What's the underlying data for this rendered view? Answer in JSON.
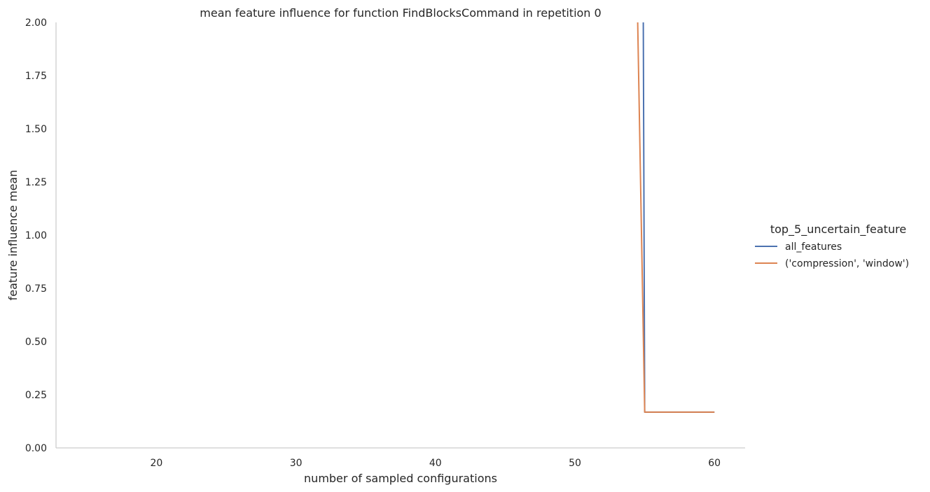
{
  "chart_data": {
    "type": "line",
    "title": "mean feature influence for function FindBlocksCommand in repetition 0",
    "xlabel": "number of sampled configurations",
    "ylabel": "feature influence mean",
    "xlim": [
      12.8,
      62.2
    ],
    "ylim": [
      0,
      2.0
    ],
    "xticks": [
      20,
      30,
      40,
      50,
      60
    ],
    "xtick_labels": [
      "20",
      "30",
      "40",
      "50",
      "60"
    ],
    "yticks": [
      0,
      0.25,
      0.5,
      0.75,
      1.0,
      1.25,
      1.5,
      1.75,
      2.0
    ],
    "ytick_labels": [
      "0.00",
      "0.25",
      "0.50",
      "0.75",
      "1.00",
      "1.25",
      "1.50",
      "1.75",
      "2.00"
    ],
    "grid": false,
    "legend": {
      "title": "top_5_uncertain_feature",
      "placement": "right"
    },
    "series": [
      {
        "name": "all_features",
        "color": "#4c72b0",
        "x": [
          54.9,
          55,
          56,
          57,
          58,
          59,
          60
        ],
        "y": [
          2.0,
          0.168,
          0.168,
          0.168,
          0.168,
          0.168,
          0.168
        ]
      },
      {
        "name": "('compression', 'window')",
        "color": "#dd8452",
        "x": [
          54.5,
          55,
          56,
          57,
          58,
          59,
          60
        ],
        "y": [
          2.0,
          0.168,
          0.168,
          0.168,
          0.168,
          0.168,
          0.168
        ]
      }
    ]
  }
}
